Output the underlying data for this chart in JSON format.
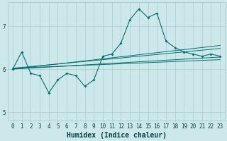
{
  "xlabel": "Humidex (Indice chaleur)",
  "ylabel": "",
  "xlim": [
    -0.5,
    23.5
  ],
  "ylim": [
    4.8,
    7.55
  ],
  "yticks": [
    5,
    6,
    7
  ],
  "xticks": [
    0,
    1,
    2,
    3,
    4,
    5,
    6,
    7,
    8,
    9,
    10,
    11,
    12,
    13,
    14,
    15,
    16,
    17,
    18,
    19,
    20,
    21,
    22,
    23
  ],
  "bg_color": "#cce8eb",
  "grid_color": "#aacccc",
  "line_color": "#007070",
  "line_data": [
    6.0,
    6.4,
    5.9,
    5.85,
    5.45,
    5.75,
    5.9,
    5.85,
    5.6,
    5.75,
    6.3,
    6.35,
    6.6,
    7.15,
    7.4,
    7.2,
    7.3,
    6.65,
    6.5,
    6.4,
    6.35,
    6.3,
    6.35,
    6.3
  ],
  "trend_lines": [
    {
      "start_y": 6.0,
      "end_y": 6.55
    },
    {
      "start_y": 6.0,
      "end_y": 6.28
    },
    {
      "start_y": 6.02,
      "end_y": 6.48
    },
    {
      "start_y": 6.02,
      "end_y": 6.22
    }
  ],
  "font_color": "#004444",
  "tick_fontsize": 5.5,
  "label_fontsize": 7
}
